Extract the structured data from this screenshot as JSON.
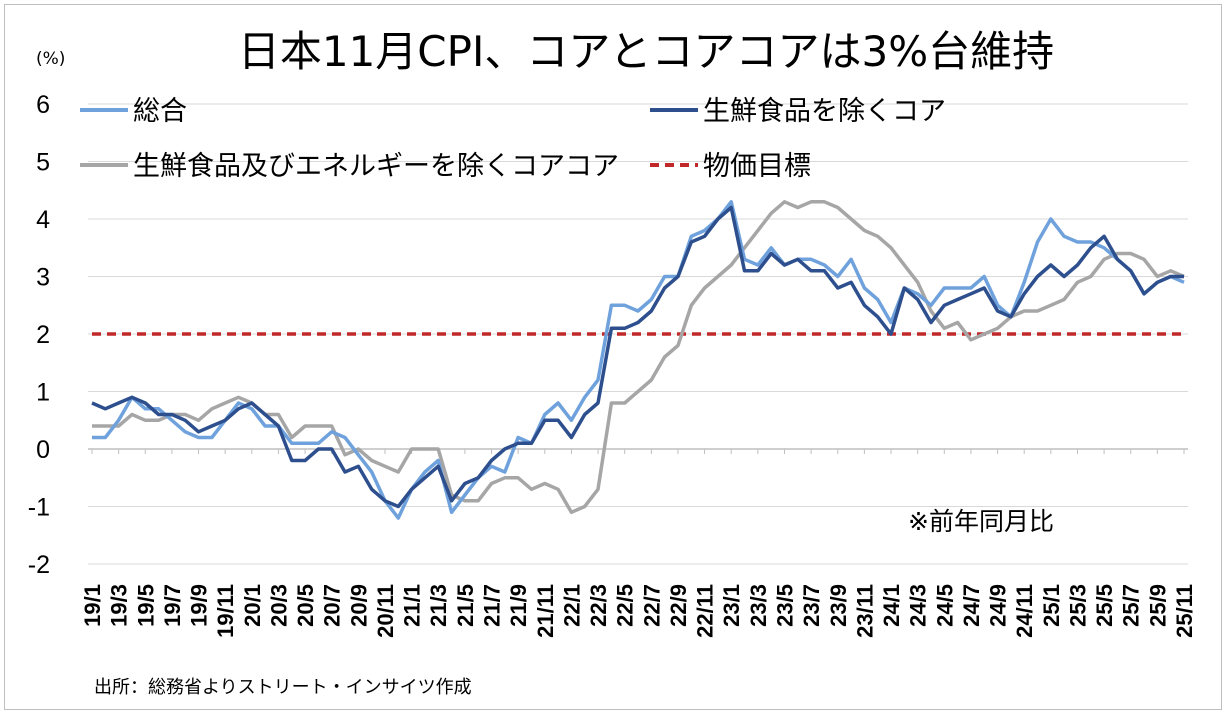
{
  "chart_data": {
    "type": "line",
    "title": "日本11月CPI、コアとコアコアは3%台維持",
    "unit_label": "(%)",
    "note": "※前年同月比",
    "source": "出所：総務省よりストリート・インサイツ作成",
    "ylim": [
      -2,
      6
    ],
    "yticks": [
      "6",
      "5",
      "4",
      "3",
      "2",
      "1",
      "0",
      "-1",
      "-2"
    ],
    "x_tick_labels": [
      "19/1",
      "19/3",
      "19/5",
      "19/7",
      "19/9",
      "19/11",
      "20/1",
      "20/3",
      "20/5",
      "20/7",
      "20/9",
      "20/11",
      "21/1",
      "21/3",
      "21/5",
      "21/7",
      "21/9",
      "21/11",
      "22/1",
      "22/3",
      "22/5",
      "22/7",
      "22/9",
      "22/11",
      "23/1",
      "23/3",
      "23/5",
      "23/7",
      "23/9",
      "23/11",
      "24/1",
      "24/3",
      "24/5",
      "24/7",
      "24/9",
      "24/11",
      "25/1",
      "25/3",
      "25/5",
      "25/7",
      "25/9",
      "25/11"
    ],
    "target": {
      "name": "物価目標",
      "value": 2,
      "color": "#c0282a"
    },
    "series": [
      {
        "name": "総合",
        "color": "#6fa2dc",
        "values": [
          0.2,
          0.2,
          0.5,
          0.9,
          0.7,
          0.7,
          0.5,
          0.3,
          0.2,
          0.2,
          0.5,
          0.8,
          0.7,
          0.4,
          0.4,
          0.1,
          0.1,
          0.1,
          0.3,
          0.2,
          -0.1,
          -0.4,
          -0.9,
          -1.2,
          -0.7,
          -0.4,
          -0.2,
          -1.1,
          -0.8,
          -0.5,
          -0.3,
          -0.4,
          0.2,
          0.1,
          0.6,
          0.8,
          0.5,
          0.9,
          1.2,
          2.5,
          2.5,
          2.4,
          2.6,
          3.0,
          3.0,
          3.7,
          3.8,
          4.0,
          4.3,
          3.3,
          3.2,
          3.5,
          3.2,
          3.3,
          3.3,
          3.2,
          3.0,
          3.3,
          2.8,
          2.6,
          2.2,
          2.8,
          2.7,
          2.5,
          2.8,
          2.8,
          2.8,
          3.0,
          2.5,
          2.3,
          2.9,
          3.6,
          4.0,
          3.7,
          3.6,
          3.6,
          3.5,
          3.3,
          3.1,
          2.7,
          2.9,
          3.0,
          2.9
        ]
      },
      {
        "name": "生鮮食品を除くコア",
        "color": "#2e4f8e",
        "values": [
          0.8,
          0.7,
          0.8,
          0.9,
          0.8,
          0.6,
          0.6,
          0.5,
          0.3,
          0.4,
          0.5,
          0.7,
          0.8,
          0.6,
          0.4,
          -0.2,
          -0.2,
          0.0,
          0.0,
          -0.4,
          -0.3,
          -0.7,
          -0.9,
          -1.0,
          -0.7,
          -0.5,
          -0.3,
          -0.9,
          -0.6,
          -0.5,
          -0.2,
          0.0,
          0.1,
          0.1,
          0.5,
          0.5,
          0.2,
          0.6,
          0.8,
          2.1,
          2.1,
          2.2,
          2.4,
          2.8,
          3.0,
          3.6,
          3.7,
          4.0,
          4.2,
          3.1,
          3.1,
          3.4,
          3.2,
          3.3,
          3.1,
          3.1,
          2.8,
          2.9,
          2.5,
          2.3,
          2.0,
          2.8,
          2.6,
          2.2,
          2.5,
          2.6,
          2.7,
          2.8,
          2.4,
          2.3,
          2.7,
          3.0,
          3.2,
          3.0,
          3.2,
          3.5,
          3.7,
          3.3,
          3.1,
          2.7,
          2.9,
          3.0,
          3.0
        ]
      },
      {
        "name": "生鮮食品及びエネルギーを除くコアコア",
        "color": "#a6a6a6",
        "values": [
          0.4,
          0.4,
          0.4,
          0.6,
          0.5,
          0.5,
          0.6,
          0.6,
          0.5,
          0.7,
          0.8,
          0.9,
          0.8,
          0.6,
          0.6,
          0.2,
          0.4,
          0.4,
          0.4,
          -0.1,
          0.0,
          -0.2,
          -0.3,
          -0.4,
          0.0,
          0.0,
          0.0,
          -0.8,
          -0.9,
          -0.9,
          -0.6,
          -0.5,
          -0.5,
          -0.7,
          -0.6,
          -0.7,
          -1.1,
          -1.0,
          -0.7,
          0.8,
          0.8,
          1.0,
          1.2,
          1.6,
          1.8,
          2.5,
          2.8,
          3.0,
          3.2,
          3.5,
          3.8,
          4.1,
          4.3,
          4.2,
          4.3,
          4.3,
          4.2,
          4.0,
          3.8,
          3.7,
          3.5,
          3.2,
          2.9,
          2.4,
          2.1,
          2.2,
          1.9,
          2.0,
          2.1,
          2.3,
          2.4,
          2.4,
          2.5,
          2.6,
          2.9,
          3.0,
          3.3,
          3.4,
          3.4,
          3.3,
          3.0,
          3.1,
          3.0
        ]
      }
    ]
  }
}
